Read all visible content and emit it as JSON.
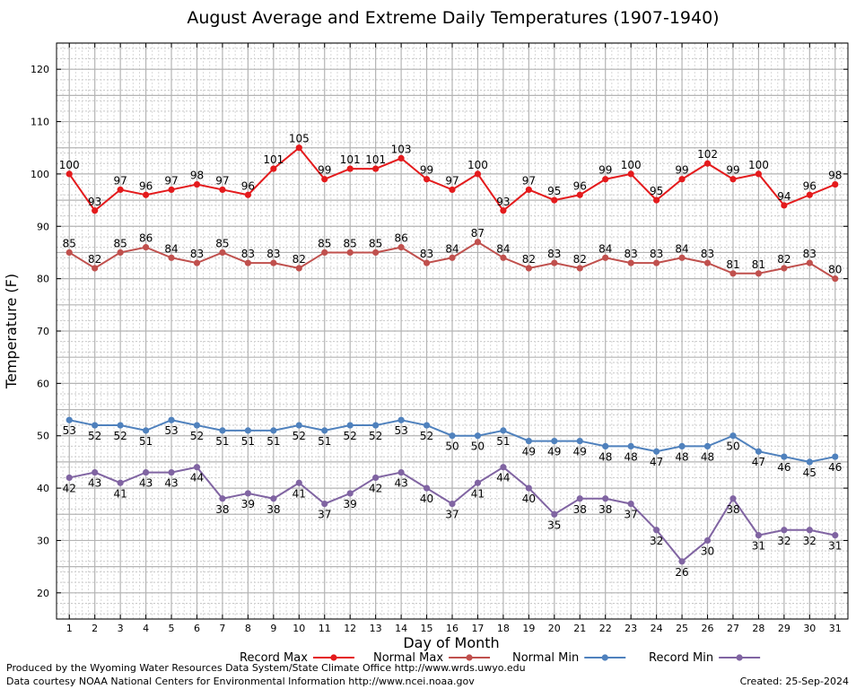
{
  "chart_data": {
    "type": "line",
    "title": "August Average and Extreme Daily Temperatures (1907-1940)",
    "xlabel": "Day of Month",
    "ylabel": "Temperature (F)",
    "ylim": [
      15,
      125
    ],
    "xlim": [
      0.5,
      31.5
    ],
    "y_ticks": [
      20,
      30,
      40,
      50,
      60,
      70,
      80,
      90,
      100,
      110,
      120
    ],
    "x": [
      1,
      2,
      3,
      4,
      5,
      6,
      7,
      8,
      9,
      10,
      11,
      12,
      13,
      14,
      15,
      16,
      17,
      18,
      19,
      20,
      21,
      22,
      23,
      24,
      25,
      26,
      27,
      28,
      29,
      30,
      31
    ],
    "grid": true,
    "legend_position": "bottom",
    "series": [
      {
        "name": "Record Max",
        "color": "#e41a1c",
        "label_pos": "above",
        "values": [
          100,
          93,
          97,
          96,
          97,
          98,
          97,
          96,
          101,
          105,
          99,
          101,
          101,
          103,
          99,
          97,
          100,
          93,
          97,
          95,
          96,
          99,
          100,
          95,
          99,
          102,
          99,
          100,
          94,
          96,
          98
        ]
      },
      {
        "name": "Normal Max",
        "color": "#c0504d",
        "label_pos": "above",
        "values": [
          85,
          82,
          85,
          86,
          84,
          83,
          85,
          83,
          83,
          82,
          85,
          85,
          85,
          86,
          83,
          84,
          87,
          84,
          82,
          83,
          82,
          84,
          83,
          83,
          84,
          83,
          81,
          81,
          82,
          83,
          80
        ]
      },
      {
        "name": "Normal Min",
        "color": "#4f81bd",
        "label_pos": "below",
        "values": [
          53,
          52,
          52,
          51,
          53,
          52,
          51,
          51,
          51,
          52,
          51,
          52,
          52,
          53,
          52,
          50,
          50,
          51,
          49,
          49,
          49,
          48,
          48,
          47,
          48,
          48,
          50,
          47,
          46,
          45,
          46
        ]
      },
      {
        "name": "Record Min",
        "color": "#8064a2",
        "label_pos": "below",
        "values": [
          42,
          43,
          41,
          43,
          43,
          44,
          38,
          39,
          38,
          41,
          37,
          39,
          42,
          43,
          40,
          37,
          41,
          44,
          40,
          35,
          38,
          38,
          37,
          32,
          26,
          30,
          38,
          31,
          32,
          32,
          31
        ]
      }
    ]
  },
  "footer": {
    "credit_line1": "Produced by the Wyoming Water Resources Data System/State Climate Office http://www.wrds.uwyo.edu",
    "credit_line2": "Data courtesy NOAA National Centers for Environmental Information http://www.ncei.noaa.gov",
    "created": "Created:  25-Sep-2024"
  }
}
